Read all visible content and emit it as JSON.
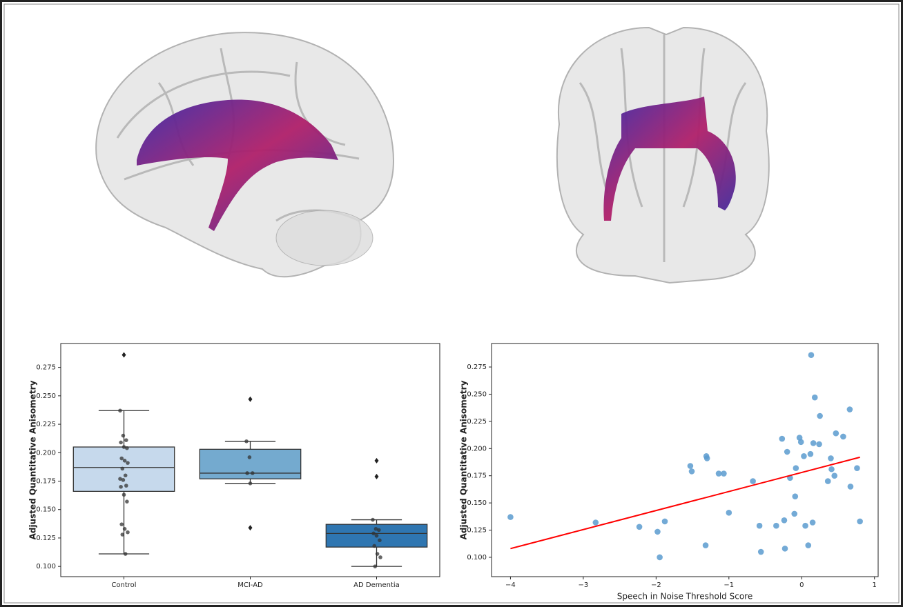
{
  "chart_data": [
    {
      "type": "box",
      "ylabel": "Adjusted Quantitative Anisometry",
      "categories": [
        "Control",
        "MCI-AD",
        "AD Dementia"
      ],
      "colors": [
        "#c6d9ec",
        "#74aacf",
        "#2f76b1"
      ],
      "boxes": [
        {
          "whislo": 0.111,
          "q1": 0.166,
          "med": 0.187,
          "q3": 0.205,
          "whishi": 0.237,
          "fliers": [
            0.286
          ],
          "points": [
            0.237,
            0.215,
            0.211,
            0.209,
            0.205,
            0.204,
            0.195,
            0.193,
            0.191,
            0.186,
            0.18,
            0.177,
            0.176,
            0.171,
            0.17,
            0.163,
            0.157,
            0.137,
            0.133,
            0.13,
            0.128,
            0.111
          ]
        },
        {
          "whislo": 0.173,
          "q1": 0.177,
          "med": 0.182,
          "q3": 0.203,
          "whishi": 0.21,
          "fliers": [
            0.247,
            0.134
          ],
          "points": [
            0.21,
            0.196,
            0.182,
            0.182,
            0.173
          ]
        },
        {
          "whislo": 0.1,
          "q1": 0.117,
          "med": 0.129,
          "q3": 0.137,
          "whishi": 0.141,
          "fliers": [
            0.193,
            0.179
          ],
          "points": [
            0.141,
            0.133,
            0.132,
            0.129,
            0.127,
            0.123,
            0.118,
            0.111,
            0.108,
            0.1
          ]
        }
      ],
      "ylim": [
        0.091,
        0.296
      ],
      "yticks": [
        {
          "value": 0.1,
          "label": "0.100"
        },
        0.125,
        {
          "value": 0.15,
          "label": "0.150"
        },
        0.175,
        {
          "value": 0.2,
          "label": "0.200"
        },
        0.225,
        {
          "value": 0.25,
          "label": "0.250"
        },
        0.275
      ]
    },
    {
      "type": "scatter",
      "xlabel": "Speech in Noise Threshold Score",
      "ylabel": "Adjusted Quantitative Anisometry",
      "color": "#5b9bcf",
      "x": [
        -4.0,
        -2.83,
        -2.23,
        -1.98,
        -1.95,
        -1.88,
        -1.53,
        -1.51,
        -1.31,
        -1.3,
        -1.32,
        -1.14,
        -1.07,
        -1.0,
        -0.67,
        -0.58,
        -0.56,
        -0.35,
        -0.27,
        -0.24,
        -0.23,
        -0.2,
        -0.16,
        -0.1,
        -0.09,
        -0.08,
        -0.03,
        -0.01,
        0.03,
        0.05,
        0.09,
        0.12,
        0.13,
        0.15,
        0.16,
        0.18,
        0.24,
        0.25,
        0.36,
        0.4,
        0.41,
        0.45,
        0.47,
        0.57,
        0.66,
        0.67,
        0.76,
        0.8
      ],
      "y": [
        0.137,
        0.132,
        0.128,
        0.1235,
        0.1,
        0.133,
        0.184,
        0.179,
        0.193,
        0.191,
        0.111,
        0.177,
        0.177,
        0.141,
        0.17,
        0.129,
        0.105,
        0.129,
        0.209,
        0.134,
        0.108,
        0.197,
        0.173,
        0.14,
        0.156,
        0.182,
        0.21,
        0.206,
        0.193,
        0.129,
        0.111,
        0.195,
        0.286,
        0.132,
        0.205,
        0.247,
        0.204,
        0.23,
        0.17,
        0.191,
        0.181,
        0.175,
        0.214,
        0.211,
        0.236,
        0.165,
        0.182,
        0.133
      ],
      "fit": {
        "color": "#ff0000",
        "x": [
          -4.0,
          0.8
        ],
        "y": [
          0.108,
          0.192
        ]
      },
      "xlim": [
        -4.26,
        1.05
      ],
      "ylim": [
        0.0822,
        0.2966
      ],
      "xticks": [
        {
          "value": -4,
          "label": "−4"
        },
        {
          "value": -3,
          "label": "−3"
        },
        {
          "value": -2,
          "label": "−2"
        },
        {
          "value": -1,
          "label": "−1"
        },
        0,
        1
      ],
      "yticks": [
        {
          "value": 0.1,
          "label": "0.100"
        },
        0.125,
        {
          "value": 0.15,
          "label": "0.150"
        },
        0.175,
        {
          "value": 0.2,
          "label": "0.200"
        },
        0.225,
        {
          "value": 0.25,
          "label": "0.250"
        },
        0.275
      ]
    }
  ]
}
